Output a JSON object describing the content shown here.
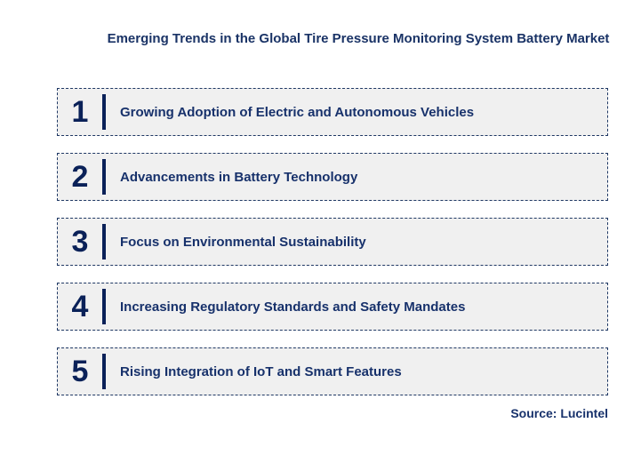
{
  "title": {
    "text": "Emerging Trends in the Global Tire Pressure Monitoring System Battery Market"
  },
  "trends": [
    {
      "number": "1",
      "label": "Growing Adoption of Electric and Autonomous Vehicles"
    },
    {
      "number": "2",
      "label": "Advancements in Battery Technology"
    },
    {
      "number": "3",
      "label": "Focus on Environmental Sustainability"
    },
    {
      "number": "4",
      "label": "Increasing Regulatory Standards and Safety Mandates"
    },
    {
      "number": "5",
      "label": "Rising Integration of IoT and Smart Features"
    }
  ],
  "source": {
    "text": "Source: Lucintel"
  },
  "colors": {
    "navy_text": "#17316b",
    "navy_number": "#0a2158",
    "box_background": "#f0f0f0",
    "box_border": "#1f3864",
    "page_background": "#ffffff"
  }
}
